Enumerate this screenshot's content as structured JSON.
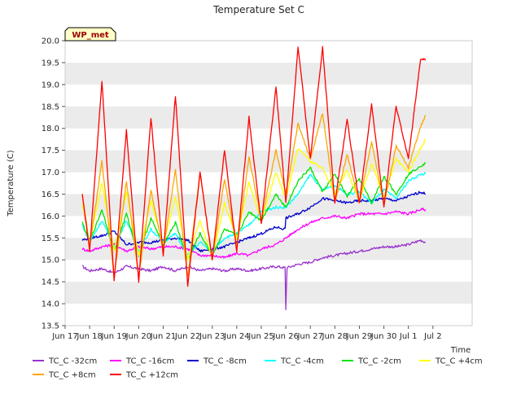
{
  "chart_data": {
    "type": "line",
    "title": "Temperature Set C",
    "xlabel": "Time",
    "ylabel": "Temperature (C)",
    "ylim": [
      13.5,
      20.0
    ],
    "xlim": [
      0,
      16.6
    ],
    "yticks": [
      "13.5",
      "14.0",
      "14.5",
      "15.0",
      "15.5",
      "16.0",
      "16.5",
      "17.0",
      "17.5",
      "18.0",
      "18.5",
      "19.0",
      "19.5",
      "20.0"
    ],
    "xticks": [
      {
        "v": 0,
        "label": "Jun 17"
      },
      {
        "v": 1,
        "label": "Jun 18"
      },
      {
        "v": 2,
        "label": "Jun 19"
      },
      {
        "v": 3,
        "label": "Jun 20"
      },
      {
        "v": 4,
        "label": "Jun 21"
      },
      {
        "v": 5,
        "label": "Jun 22"
      },
      {
        "v": 6,
        "label": "Jun 23"
      },
      {
        "v": 7,
        "label": "Jun 24"
      },
      {
        "v": 8,
        "label": "Jun 25"
      },
      {
        "v": 9,
        "label": "Jun 26"
      },
      {
        "v": 10,
        "label": "Jun 27"
      },
      {
        "v": 11,
        "label": "Jun 28"
      },
      {
        "v": 12,
        "label": "Jun 29"
      },
      {
        "v": 13,
        "label": "Jun 30"
      },
      {
        "v": 14,
        "label": "Jul 1"
      },
      {
        "v": 15,
        "label": "Jul 2"
      }
    ],
    "grid": "horizontal bands",
    "legend_position": "bottom",
    "annotation": "WP_met",
    "series": [
      {
        "name": "TC_C -32cm",
        "color": "#9932cc",
        "x": [
          0.7,
          1.0,
          1.5,
          2.0,
          2.5,
          3.0,
          3.5,
          4.0,
          4.5,
          5.0,
          5.5,
          6.0,
          6.5,
          7.0,
          7.5,
          8.0,
          8.6,
          8.97,
          9.0,
          9.05,
          9.5,
          10.0,
          10.5,
          11.0,
          11.5,
          12.0,
          12.5,
          13.0,
          13.5,
          14.0,
          14.5,
          14.7
        ],
        "y": [
          14.85,
          14.75,
          14.8,
          14.7,
          14.85,
          14.8,
          14.75,
          14.85,
          14.75,
          14.85,
          14.75,
          14.8,
          14.75,
          14.8,
          14.75,
          14.8,
          14.85,
          14.82,
          13.88,
          14.82,
          14.9,
          14.95,
          15.05,
          15.1,
          15.15,
          15.2,
          15.25,
          15.3,
          15.3,
          15.35,
          15.45,
          15.4
        ]
      },
      {
        "name": "TC_C -16cm",
        "color": "#ff00ff",
        "x": [
          0.7,
          1.0,
          1.5,
          2.0,
          2.5,
          3.0,
          3.5,
          4.0,
          4.5,
          5.0,
          5.5,
          6.0,
          6.5,
          7.0,
          7.5,
          8.0,
          8.6,
          9.0,
          9.5,
          10.0,
          10.5,
          11.0,
          11.5,
          12.0,
          12.5,
          13.0,
          13.5,
          14.0,
          14.5,
          14.7
        ],
        "y": [
          15.25,
          15.2,
          15.3,
          15.35,
          15.2,
          15.3,
          15.25,
          15.3,
          15.3,
          15.25,
          15.1,
          15.1,
          15.05,
          15.15,
          15.1,
          15.25,
          15.35,
          15.5,
          15.7,
          15.85,
          15.95,
          16.0,
          15.95,
          16.05,
          16.05,
          16.05,
          16.1,
          16.05,
          16.15,
          16.15
        ]
      },
      {
        "name": "TC_C -8cm",
        "color": "#0000cd",
        "x": [
          0.7,
          1.0,
          1.5,
          2.0,
          2.5,
          3.0,
          3.5,
          4.0,
          4.5,
          5.0,
          5.5,
          6.0,
          6.5,
          7.0,
          7.5,
          8.0,
          8.6,
          8.97,
          9.0,
          9.5,
          10.0,
          10.5,
          11.0,
          11.5,
          12.0,
          12.5,
          13.0,
          13.5,
          14.0,
          14.5,
          14.7
        ],
        "y": [
          15.45,
          15.5,
          15.55,
          15.65,
          15.35,
          15.4,
          15.4,
          15.45,
          15.5,
          15.45,
          15.2,
          15.25,
          15.3,
          15.4,
          15.5,
          15.6,
          15.75,
          15.7,
          15.95,
          16.05,
          16.2,
          16.4,
          16.35,
          16.3,
          16.35,
          16.35,
          16.4,
          16.35,
          16.45,
          16.55,
          16.5
        ]
      },
      {
        "name": "TC_C -4cm",
        "color": "#00ffff",
        "x": [
          0.7,
          1.0,
          1.5,
          2.0,
          2.5,
          3.0,
          3.5,
          4.0,
          4.5,
          5.0,
          5.5,
          6.0,
          6.5,
          7.0,
          7.5,
          8.0,
          8.6,
          9.0,
          9.5,
          10.0,
          10.5,
          11.0,
          11.5,
          12.0,
          12.5,
          13.0,
          13.5,
          14.0,
          14.5,
          14.7
        ],
        "y": [
          15.8,
          15.4,
          15.9,
          15.3,
          15.9,
          15.2,
          15.7,
          15.4,
          15.6,
          15.1,
          15.4,
          15.2,
          15.5,
          15.6,
          15.8,
          16.1,
          16.2,
          16.2,
          16.5,
          16.95,
          16.6,
          16.7,
          16.5,
          16.55,
          16.3,
          16.6,
          16.4,
          16.8,
          16.95,
          16.97
        ]
      },
      {
        "name": "TC_C -2cm",
        "color": "#00e400",
        "x": [
          0.7,
          1.0,
          1.5,
          2.0,
          2.5,
          3.0,
          3.5,
          4.0,
          4.5,
          5.0,
          5.5,
          6.0,
          6.5,
          7.0,
          7.5,
          8.0,
          8.6,
          9.0,
          9.5,
          10.0,
          10.5,
          11.0,
          11.5,
          12.0,
          12.5,
          13.0,
          13.5,
          14.0,
          14.5,
          14.7
        ],
        "y": [
          15.85,
          15.4,
          16.15,
          15.2,
          16.05,
          15.1,
          15.95,
          15.35,
          15.85,
          15.0,
          15.6,
          15.1,
          15.7,
          15.55,
          16.1,
          15.9,
          16.5,
          16.2,
          16.8,
          17.1,
          16.55,
          16.95,
          16.45,
          16.85,
          16.3,
          16.9,
          16.5,
          16.95,
          17.15,
          17.2
        ]
      },
      {
        "name": "TC_C +4cm",
        "color": "#ffff00",
        "x": [
          0.7,
          1.0,
          1.5,
          2.0,
          2.5,
          3.0,
          3.5,
          4.0,
          4.5,
          5.0,
          5.5,
          6.0,
          6.5,
          7.0,
          7.5,
          8.0,
          8.6,
          9.0,
          9.5,
          10.0,
          10.5,
          11.0,
          11.5,
          12.0,
          12.5,
          13.0,
          13.5,
          14.0,
          14.5,
          14.7
        ],
        "y": [
          16.3,
          15.4,
          16.75,
          15.2,
          16.55,
          15.1,
          16.35,
          15.35,
          16.45,
          15.0,
          15.9,
          15.05,
          16.3,
          15.5,
          16.75,
          15.9,
          17.0,
          16.4,
          17.55,
          17.25,
          17.1,
          16.5,
          17.05,
          16.35,
          17.2,
          16.45,
          17.3,
          17.0,
          17.55,
          17.75
        ]
      },
      {
        "name": "TC_C +8cm",
        "color": "#ffa500",
        "x": [
          0.7,
          1.0,
          1.5,
          2.0,
          2.5,
          3.0,
          3.5,
          4.0,
          4.5,
          5.0,
          5.5,
          6.0,
          6.5,
          7.0,
          7.5,
          8.0,
          8.6,
          9.0,
          9.5,
          10.0,
          10.5,
          11.0,
          11.5,
          12.0,
          12.5,
          13.0,
          13.5,
          14.0,
          14.5,
          14.7
        ],
        "y": [
          16.5,
          15.3,
          17.25,
          14.6,
          16.8,
          14.6,
          16.6,
          15.2,
          17.05,
          14.6,
          17.0,
          15.0,
          16.85,
          15.3,
          17.35,
          15.9,
          17.5,
          16.5,
          18.1,
          17.3,
          18.35,
          16.3,
          17.4,
          16.3,
          17.7,
          16.25,
          17.6,
          17.1,
          18.05,
          18.3
        ]
      },
      {
        "name": "TC_C +12cm",
        "color": "#ff0000",
        "x": [
          0.7,
          1.0,
          1.5,
          2.0,
          2.5,
          3.0,
          3.5,
          4.0,
          4.5,
          5.0,
          5.5,
          6.0,
          6.5,
          7.0,
          7.5,
          8.0,
          8.6,
          9.0,
          9.5,
          10.0,
          10.5,
          11.0,
          11.5,
          12.0,
          12.5,
          13.0,
          13.5,
          14.0,
          14.5,
          14.7
        ],
        "y": [
          16.5,
          15.2,
          19.1,
          14.5,
          17.95,
          14.5,
          18.25,
          15.1,
          18.75,
          14.4,
          17.0,
          15.0,
          17.5,
          15.2,
          18.25,
          15.8,
          18.95,
          16.3,
          19.85,
          17.3,
          19.85,
          16.3,
          18.2,
          16.3,
          18.55,
          16.2,
          18.5,
          17.3,
          19.6,
          19.55
        ]
      }
    ]
  }
}
